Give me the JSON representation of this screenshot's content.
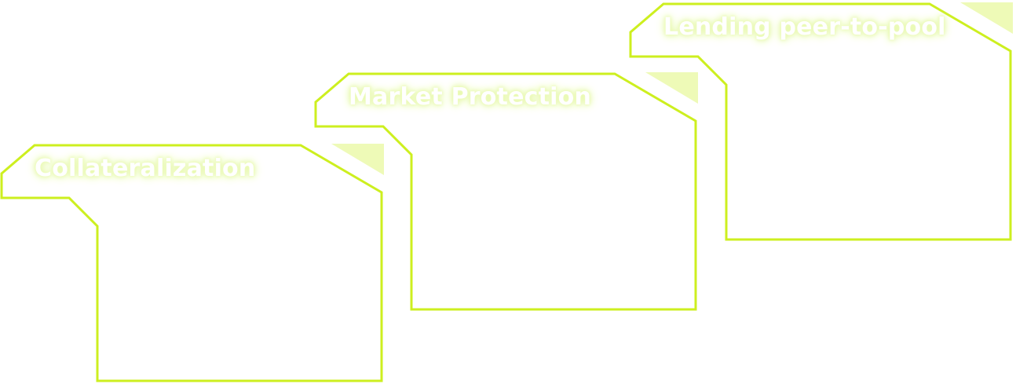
{
  "cards": [
    {
      "title": "Collateralization"
    },
    {
      "title": "Market Protection"
    },
    {
      "title": "Lending peer-to-pool"
    }
  ],
  "colors": {
    "outline": "#cdef1f",
    "flap": "#eefab7",
    "title_glow": "#e2f79c",
    "background": "#ffffff"
  }
}
